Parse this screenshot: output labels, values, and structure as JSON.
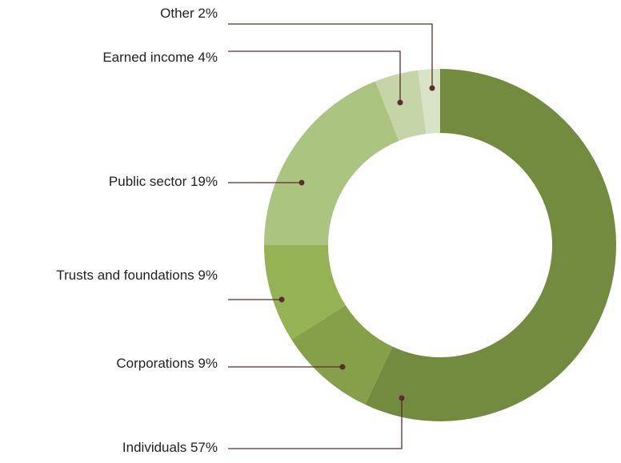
{
  "chart_data": {
    "type": "donut",
    "categories": [
      "Individuals",
      "Corporations",
      "Trusts and foundations",
      "Public sector",
      "Earned income",
      "Other"
    ],
    "values": [
      57,
      9,
      9,
      19,
      4,
      2
    ],
    "value_labels": [
      "57%",
      "9%",
      "9%",
      "19%",
      "4%",
      "2%"
    ],
    "colors": [
      "#728b3e",
      "#86a04a",
      "#95b255",
      "#abc47f",
      "#c5d5a7",
      "#d9e4c6"
    ]
  }
}
